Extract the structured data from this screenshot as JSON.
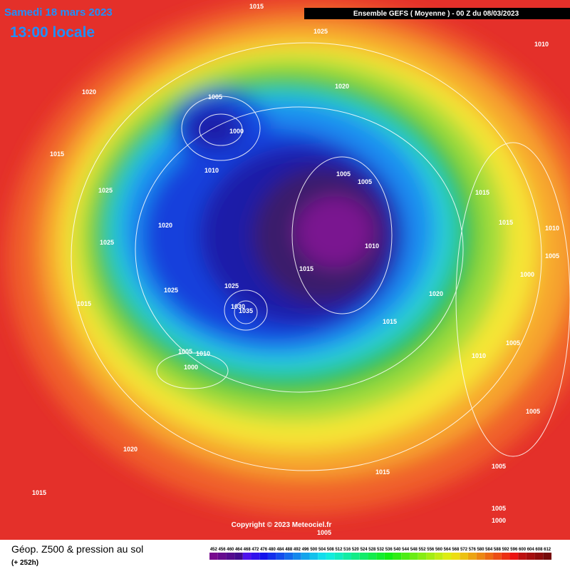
{
  "header": {
    "date": "Samedi 18 mars 2023",
    "time": "13:00 locale",
    "model": "Ensemble GEFS  ( Moyenne )  -  00 Z du 08/03/2023"
  },
  "copyright": "Copyright © 2023 Meteociel.fr",
  "footer": {
    "title": "Géop. Z500 & pression au sol",
    "lead": "(+ 252h)"
  },
  "scale": [
    "452",
    "456",
    "460",
    "464",
    "468",
    "472",
    "476",
    "480",
    "484",
    "488",
    "492",
    "496",
    "500",
    "504",
    "508",
    "512",
    "516",
    "520",
    "524",
    "528",
    "532",
    "536",
    "540",
    "544",
    "548",
    "552",
    "556",
    "560",
    "564",
    "568",
    "572",
    "576",
    "580",
    "584",
    "588",
    "592",
    "596",
    "600",
    "604",
    "608",
    "612"
  ],
  "isobars": [
    "1015",
    "1025",
    "1010",
    "1020",
    "1020",
    "1005",
    "1000",
    "1015",
    "1010",
    "1005",
    "1005",
    "1025",
    "1015",
    "1015",
    "1020",
    "1010",
    "1025",
    "1010",
    "1005",
    "1015",
    "1000",
    "1025",
    "1025",
    "1020",
    "1030",
    "1035",
    "1015",
    "1015",
    "1005",
    "1005",
    "1010",
    "1010",
    "1000",
    "1005",
    "1020",
    "1015",
    "1005",
    "1015",
    "1005",
    "1000",
    "1005"
  ]
}
